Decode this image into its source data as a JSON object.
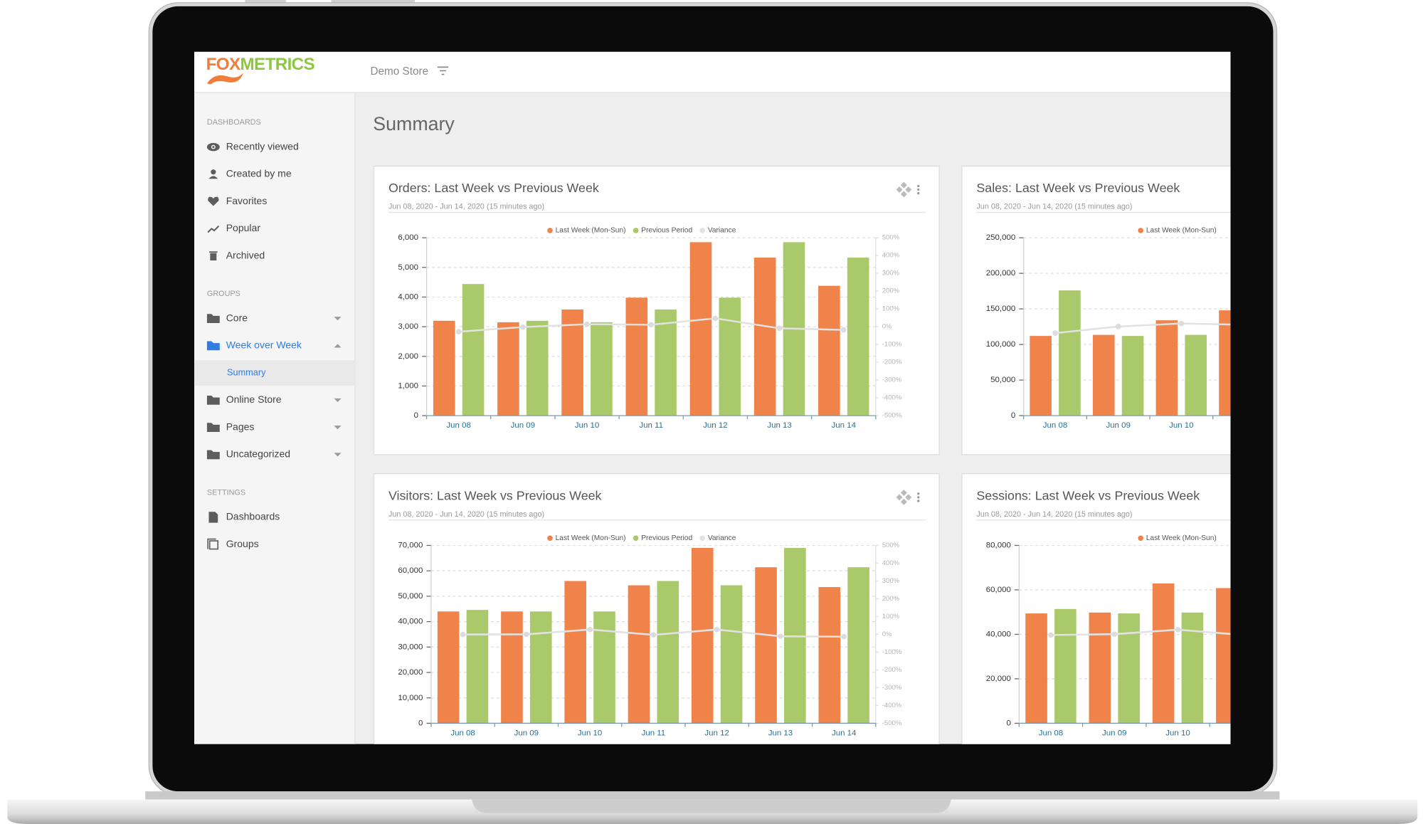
{
  "header": {
    "logo": {
      "fox": "FOX",
      "metrics": "METRICS"
    },
    "store": "Demo Store"
  },
  "sidebar": {
    "sections": [
      {
        "heading": "DASHBOARDS",
        "items": [
          {
            "label": "Recently viewed"
          },
          {
            "label": "Created by me"
          },
          {
            "label": "Favorites"
          },
          {
            "label": "Popular"
          },
          {
            "label": "Archived"
          }
        ]
      },
      {
        "heading": "GROUPS",
        "items": [
          {
            "label": "Core"
          },
          {
            "label": "Week over Week",
            "active": true,
            "children": [
              {
                "label": "Summary",
                "active": true
              }
            ]
          },
          {
            "label": "Online Store"
          },
          {
            "label": "Pages"
          },
          {
            "label": "Uncategorized"
          }
        ]
      },
      {
        "heading": "SETTINGS",
        "items": [
          {
            "label": "Dashboards"
          },
          {
            "label": "Groups"
          }
        ]
      }
    ]
  },
  "page_title": "Summary",
  "chart_data": [
    {
      "type": "bar",
      "title": "Orders: Last Week vs Previous Week",
      "subtitle": "Jun 08, 2020 - Jun 14, 2020 (15 minutes ago)",
      "categories": [
        "Jun 08",
        "Jun 09",
        "Jun 10",
        "Jun 11",
        "Jun 12",
        "Jun 13",
        "Jun 14"
      ],
      "series": [
        {
          "name": "Last Week (Mon-Sun)",
          "color": "#f0834a",
          "values": [
            3200,
            3150,
            3580,
            3980,
            5850,
            5330,
            4380
          ]
        },
        {
          "name": "Previous Period",
          "color": "#a9c96b",
          "values": [
            4440,
            3200,
            3150,
            3580,
            3980,
            5850,
            5330
          ]
        },
        {
          "name": "Variance",
          "color": "#e2e2e2",
          "axis": "y2",
          "type": "line",
          "values": [
            -28,
            -2,
            14,
            11,
            47,
            -9,
            -18
          ]
        }
      ],
      "ylim": [
        0,
        6000
      ],
      "yticks": [
        0,
        {
          "value": 1000,
          "label": "1,000"
        },
        {
          "value": 2000,
          "label": "2,000"
        },
        {
          "value": 3000,
          "label": "3,000"
        },
        {
          "value": 4000,
          "label": "4,000"
        },
        {
          "value": 5000,
          "label": "5,000"
        },
        {
          "value": 6000,
          "label": "6,000"
        }
      ],
      "y2lim": [
        -500,
        500
      ],
      "y2ticks": [
        {
          "value": -500,
          "label": "-500%"
        },
        {
          "value": -400,
          "label": "-400%"
        },
        {
          "value": -300,
          "label": "-300%"
        },
        {
          "value": -200,
          "label": "-200%"
        },
        {
          "value": -100,
          "label": "-100%"
        },
        {
          "value": 0,
          "label": "0%"
        },
        {
          "value": 100,
          "label": "100%"
        },
        {
          "value": 200,
          "label": "200%"
        },
        {
          "value": 300,
          "label": "300%"
        },
        {
          "value": 400,
          "label": "400%"
        },
        {
          "value": 500,
          "label": "500%"
        }
      ],
      "grid": true
    },
    {
      "type": "bar",
      "title": "Sales: Last Week vs Previous Week",
      "subtitle": "Jun 08, 2020 - Jun 14, 2020 (15 minutes ago)",
      "categories": [
        "Jun 08",
        "Jun 09",
        "Jun 10",
        null
      ],
      "series": [
        {
          "name": "Last Week (Mon-Sun)",
          "color": "#f0834a",
          "values": [
            112000,
            113500,
            134000,
            148000
          ]
        },
        {
          "color": "#a9c96b",
          "values": [
            176000,
            112000,
            113500,
            null
          ]
        },
        {
          "color": "#e2e2e2",
          "axis": "y2",
          "type": "line",
          "values": [
            -36,
            1,
            18,
            11
          ]
        }
      ],
      "ylim": [
        0,
        250000
      ],
      "yticks": [
        0,
        {
          "value": 50000,
          "label": "50,000"
        },
        {
          "value": 100000,
          "label": "100,000"
        },
        {
          "value": 150000,
          "label": "150,000"
        },
        {
          "value": 200000,
          "label": "200,000"
        },
        {
          "value": 250000,
          "label": "250,000"
        }
      ],
      "y2lim": [
        -500,
        500
      ],
      "grid": true
    },
    {
      "type": "bar",
      "title": "Visitors: Last Week vs Previous Week",
      "subtitle": "Jun 08, 2020 - Jun 14, 2020 (15 minutes ago)",
      "categories": [
        "Jun 08",
        "Jun 09",
        "Jun 10",
        "Jun 11",
        "Jun 12",
        "Jun 13",
        "Jun 14"
      ],
      "series": [
        {
          "name": "Last Week (Mon-Sun)",
          "color": "#f0834a",
          "values": [
            44000,
            44000,
            56000,
            54300,
            69000,
            61400,
            53600
          ]
        },
        {
          "name": "Previous Period",
          "color": "#a9c96b",
          "values": [
            44600,
            44000,
            44000,
            56000,
            54300,
            69000,
            61400
          ]
        },
        {
          "name": "Variance",
          "color": "#e2e2e2",
          "axis": "y2",
          "type": "line",
          "values": [
            -1,
            0,
            27,
            -3,
            27,
            -11,
            -13
          ]
        }
      ],
      "ylim": [
        0,
        70000
      ],
      "yticks": [
        0,
        {
          "value": 10000,
          "label": "10,000"
        },
        {
          "value": 20000,
          "label": "20,000"
        },
        {
          "value": 30000,
          "label": "30,000"
        },
        {
          "value": 40000,
          "label": "40,000"
        },
        {
          "value": 50000,
          "label": "50,000"
        },
        {
          "value": 60000,
          "label": "60,000"
        },
        {
          "value": 70000,
          "label": "70,000"
        }
      ],
      "y2lim": [
        -500,
        500
      ],
      "y2ticks": [
        {
          "value": -500,
          "label": "-500%"
        },
        {
          "value": -400,
          "label": "-400%"
        },
        {
          "value": -300,
          "label": "-300%"
        },
        {
          "value": -200,
          "label": "-200%"
        },
        {
          "value": -100,
          "label": "-100%"
        },
        {
          "value": 0,
          "label": "0%"
        },
        {
          "value": 100,
          "label": "100%"
        },
        {
          "value": 200,
          "label": "200%"
        },
        {
          "value": 300,
          "label": "300%"
        },
        {
          "value": 400,
          "label": "400%"
        },
        {
          "value": 500,
          "label": "500%"
        }
      ],
      "grid": true
    },
    {
      "type": "bar",
      "title": "Sessions: Last Week vs Previous Week",
      "subtitle": "Jun 08, 2020 - Jun 14, 2020 (15 minutes ago)",
      "categories": [
        "Jun 08",
        "Jun 09",
        "Jun 10",
        null
      ],
      "series": [
        {
          "name": "Last Week (Mon-Sun)",
          "color": "#f0834a",
          "values": [
            49400,
            49800,
            62900,
            60800
          ]
        },
        {
          "color": "#a9c96b",
          "values": [
            51400,
            49400,
            49800,
            null
          ]
        },
        {
          "color": "#e2e2e2",
          "axis": "y2",
          "type": "line",
          "values": [
            -4,
            1,
            26,
            -3
          ]
        }
      ],
      "ylim": [
        0,
        80000
      ],
      "yticks": [
        0,
        {
          "value": 20000,
          "label": "20,000"
        },
        {
          "value": 40000,
          "label": "40,000"
        },
        {
          "value": 60000,
          "label": "60,000"
        },
        {
          "value": 80000,
          "label": "80,000"
        }
      ],
      "y2lim": [
        -500,
        500
      ],
      "grid": true
    }
  ]
}
